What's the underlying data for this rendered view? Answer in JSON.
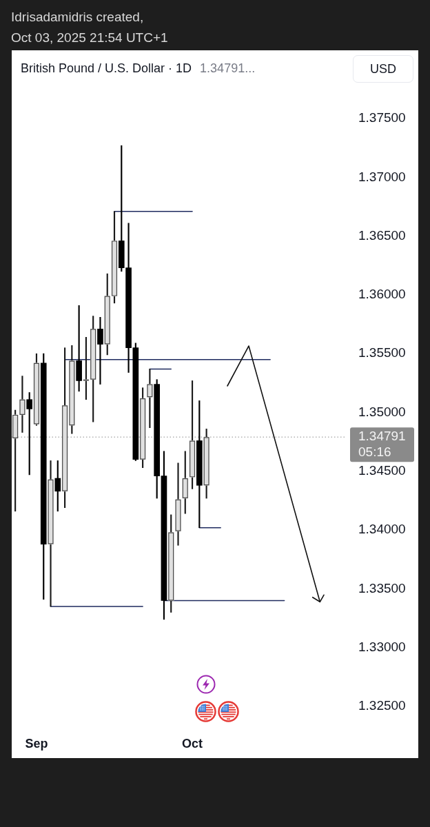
{
  "chart_data": {
    "type": "candlestick",
    "title": "British Pound / U.S. Dollar · 1D",
    "subtitle": "1.34791...",
    "ylabel": "USD",
    "annotations": [
      "Idrisadamidris created,",
      "Oct 03, 2025 21:54 UTC+1"
    ],
    "categories": [
      null,
      null,
      null,
      "Sep",
      null,
      null,
      null,
      null,
      null,
      null,
      null,
      null,
      null,
      null,
      null,
      null,
      null,
      null,
      null,
      null,
      null,
      null,
      null,
      null,
      null,
      "Oct",
      null,
      null,
      null,
      null,
      null,
      null,
      null,
      null,
      null,
      null,
      null,
      null,
      null,
      null,
      null,
      null,
      null,
      null,
      null,
      null,
      null
    ],
    "ohlc": [
      [
        1.3478,
        1.3502,
        1.3416,
        1.3498
      ],
      [
        1.3498,
        1.3531,
        1.3483,
        1.3511
      ],
      [
        1.3511,
        1.3517,
        1.3447,
        1.3503
      ],
      [
        1.349,
        1.355,
        1.3489,
        1.3542
      ],
      [
        1.3542,
        1.355,
        1.3341,
        1.3388
      ],
      [
        1.3388,
        1.3459,
        1.3335,
        1.3443
      ],
      [
        1.3444,
        1.3459,
        1.3416,
        1.3433
      ],
      [
        1.3433,
        1.3555,
        1.3419,
        1.3506
      ],
      [
        1.3489,
        1.3557,
        1.3482,
        1.3544
      ],
      [
        1.3544,
        1.3591,
        1.3518,
        1.3527
      ],
      [
        1.3527,
        1.3564,
        1.3511,
        1.3528
      ],
      [
        1.3528,
        1.3582,
        1.3492,
        1.3571
      ],
      [
        1.3571,
        1.3581,
        1.3524,
        1.3558
      ],
      [
        1.3558,
        1.3618,
        1.3549,
        1.3599
      ],
      [
        1.3599,
        1.3671,
        1.3593,
        1.3646
      ],
      [
        1.3646,
        1.3727,
        1.362,
        1.3623
      ],
      [
        1.3623,
        1.3661,
        1.3534,
        1.3555
      ],
      [
        1.3555,
        1.3559,
        1.3459,
        1.346
      ],
      [
        1.346,
        1.3521,
        1.3453,
        1.3512
      ],
      [
        1.3513,
        1.3537,
        1.3487,
        1.3524
      ],
      [
        1.3524,
        1.3528,
        1.3427,
        1.3446
      ],
      [
        1.3446,
        1.3467,
        1.3324,
        1.334
      ],
      [
        1.334,
        1.3413,
        1.333,
        1.3398
      ],
      [
        1.3399,
        1.3457,
        1.3387,
        1.3426
      ],
      [
        1.3427,
        1.3467,
        1.3414,
        1.3444
      ],
      [
        1.3445,
        1.3527,
        1.3435,
        1.3476
      ],
      [
        1.3476,
        1.351,
        1.3402,
        1.3438
      ],
      [
        1.3438,
        1.3486,
        1.3427,
        1.3479
      ],
      null,
      null,
      null,
      null,
      null,
      null,
      null,
      null,
      null,
      null,
      null,
      null,
      null,
      null,
      null,
      null,
      null,
      null,
      null
    ],
    "colors": [
      "#e0e0e0",
      "#e0e0e0",
      "#000000",
      "#e0e0e0",
      "#000000",
      "#e0e0e0",
      "#000000",
      "#e0e0e0",
      "#e0e0e0",
      "#000000",
      "#e0e0e0",
      "#e0e0e0",
      "#000000",
      "#e0e0e0",
      "#e0e0e0",
      "#000000",
      "#000000",
      "#000000",
      "#e0e0e0",
      "#e0e0e0",
      "#000000",
      "#000000",
      "#e0e0e0",
      "#e0e0e0",
      "#e0e0e0",
      "#e0e0e0",
      "#000000",
      "#e0e0e0",
      null,
      null,
      null,
      null,
      null,
      null,
      null,
      null,
      null,
      null,
      null,
      null,
      null,
      null,
      null,
      null,
      null,
      null,
      null
    ],
    "series": [
      {
        "type": "line",
        "color": "#1e2a5e",
        "values": [
          null,
          null,
          null,
          null,
          null,
          null,
          null,
          null,
          null,
          null,
          null,
          null,
          null,
          null,
          1.3671,
          1.3671,
          1.3671,
          1.3671,
          1.3671,
          1.3671,
          1.3671,
          1.3671,
          1.3671,
          1.3671,
          1.3671,
          1.3671,
          null,
          null,
          null,
          null,
          null,
          null,
          null,
          null,
          null,
          null,
          null,
          null,
          null,
          null,
          null,
          null,
          null,
          null,
          null,
          null,
          null
        ]
      },
      {
        "type": "line",
        "color": "#1e2a5e",
        "values": [
          null,
          null,
          null,
          null,
          null,
          null,
          null,
          1.3545,
          1.3545,
          1.3545,
          1.3545,
          1.3545,
          1.3545,
          1.3545,
          1.3545,
          1.3545,
          1.3545,
          null,
          1.3545,
          1.3545,
          1.3545,
          1.3545,
          1.3545,
          1.3545,
          1.3545,
          1.3545,
          1.3545,
          1.3545,
          1.3545,
          1.3545,
          1.3545,
          1.3545,
          1.3545,
          1.3545,
          1.3545,
          1.3545,
          1.3545,
          null,
          null,
          null,
          null,
          null,
          null,
          null,
          null,
          null,
          null
        ]
      },
      {
        "type": "line",
        "color": "#1e2a5e",
        "values": [
          null,
          null,
          null,
          null,
          null,
          null,
          null,
          null,
          null,
          null,
          null,
          null,
          null,
          null,
          null,
          null,
          null,
          null,
          null,
          1.3537,
          1.3537,
          1.3537,
          1.3537,
          null,
          null,
          null,
          null,
          null,
          null,
          null,
          null,
          null,
          null,
          null,
          null,
          null,
          null,
          null,
          null,
          null,
          null,
          null,
          null,
          null,
          null,
          null,
          null
        ]
      },
      {
        "type": "line",
        "color": "#1e2a5e",
        "values": [
          null,
          null,
          null,
          null,
          null,
          1.3335,
          1.3335,
          1.3335,
          1.3335,
          1.3335,
          1.3335,
          1.3335,
          1.3335,
          1.3335,
          1.3335,
          1.3335,
          1.3335,
          1.3335,
          1.3335,
          null,
          null,
          null,
          null,
          null,
          null,
          null,
          null,
          null,
          null,
          null,
          null,
          null,
          null,
          null,
          null,
          null,
          null,
          null,
          null,
          null,
          null,
          null,
          null,
          null,
          null,
          null,
          null
        ]
      },
      {
        "type": "line",
        "color": "#1e2a5e",
        "values": [
          null,
          null,
          null,
          null,
          null,
          null,
          null,
          null,
          null,
          null,
          null,
          null,
          null,
          null,
          null,
          null,
          null,
          null,
          null,
          null,
          null,
          null,
          null,
          null,
          null,
          null,
          1.3402,
          1.3402,
          1.3402,
          1.3402,
          null,
          null,
          null,
          null,
          null,
          null,
          null,
          null,
          null,
          null,
          null,
          null,
          null,
          null,
          null,
          null,
          null
        ]
      },
      {
        "type": "line",
        "color": "#1e2a5e",
        "values": [
          null,
          null,
          null,
          null,
          null,
          null,
          null,
          null,
          null,
          null,
          null,
          null,
          null,
          null,
          null,
          null,
          null,
          null,
          null,
          null,
          null,
          1.334,
          1.334,
          1.334,
          1.334,
          1.334,
          1.334,
          1.334,
          1.334,
          1.334,
          1.334,
          1.334,
          1.334,
          1.334,
          1.334,
          1.334,
          1.334,
          1.334,
          1.334,
          null,
          null,
          null,
          null,
          null,
          null,
          null,
          null
        ]
      }
    ],
    "ylim": [
      1.325,
      1.375
    ],
    "yticks": [
      {
        "value": 1.325,
        "label": "1.32500"
      },
      {
        "value": 1.33,
        "label": "1.33000"
      },
      {
        "value": 1.335,
        "label": "1.33500"
      },
      {
        "value": 1.34,
        "label": "1.34000"
      },
      {
        "value": 1.345,
        "label": "1.34500"
      },
      {
        "value": 1.35,
        "label": "1.35000"
      },
      {
        "value": 1.355,
        "label": "1.35500"
      },
      {
        "value": 1.36,
        "label": "1.36000"
      },
      {
        "value": 1.365,
        "label": "1.36500"
      },
      {
        "value": 1.37,
        "label": "1.37000"
      },
      {
        "value": 1.375,
        "label": "1.37500"
      }
    ],
    "ref_lines": [
      {
        "axis": "y",
        "value": 1.34791,
        "label": "1.34791\n05:16",
        "color": "#8a8a8a",
        "line_style": "dotted"
      }
    ]
  }
}
